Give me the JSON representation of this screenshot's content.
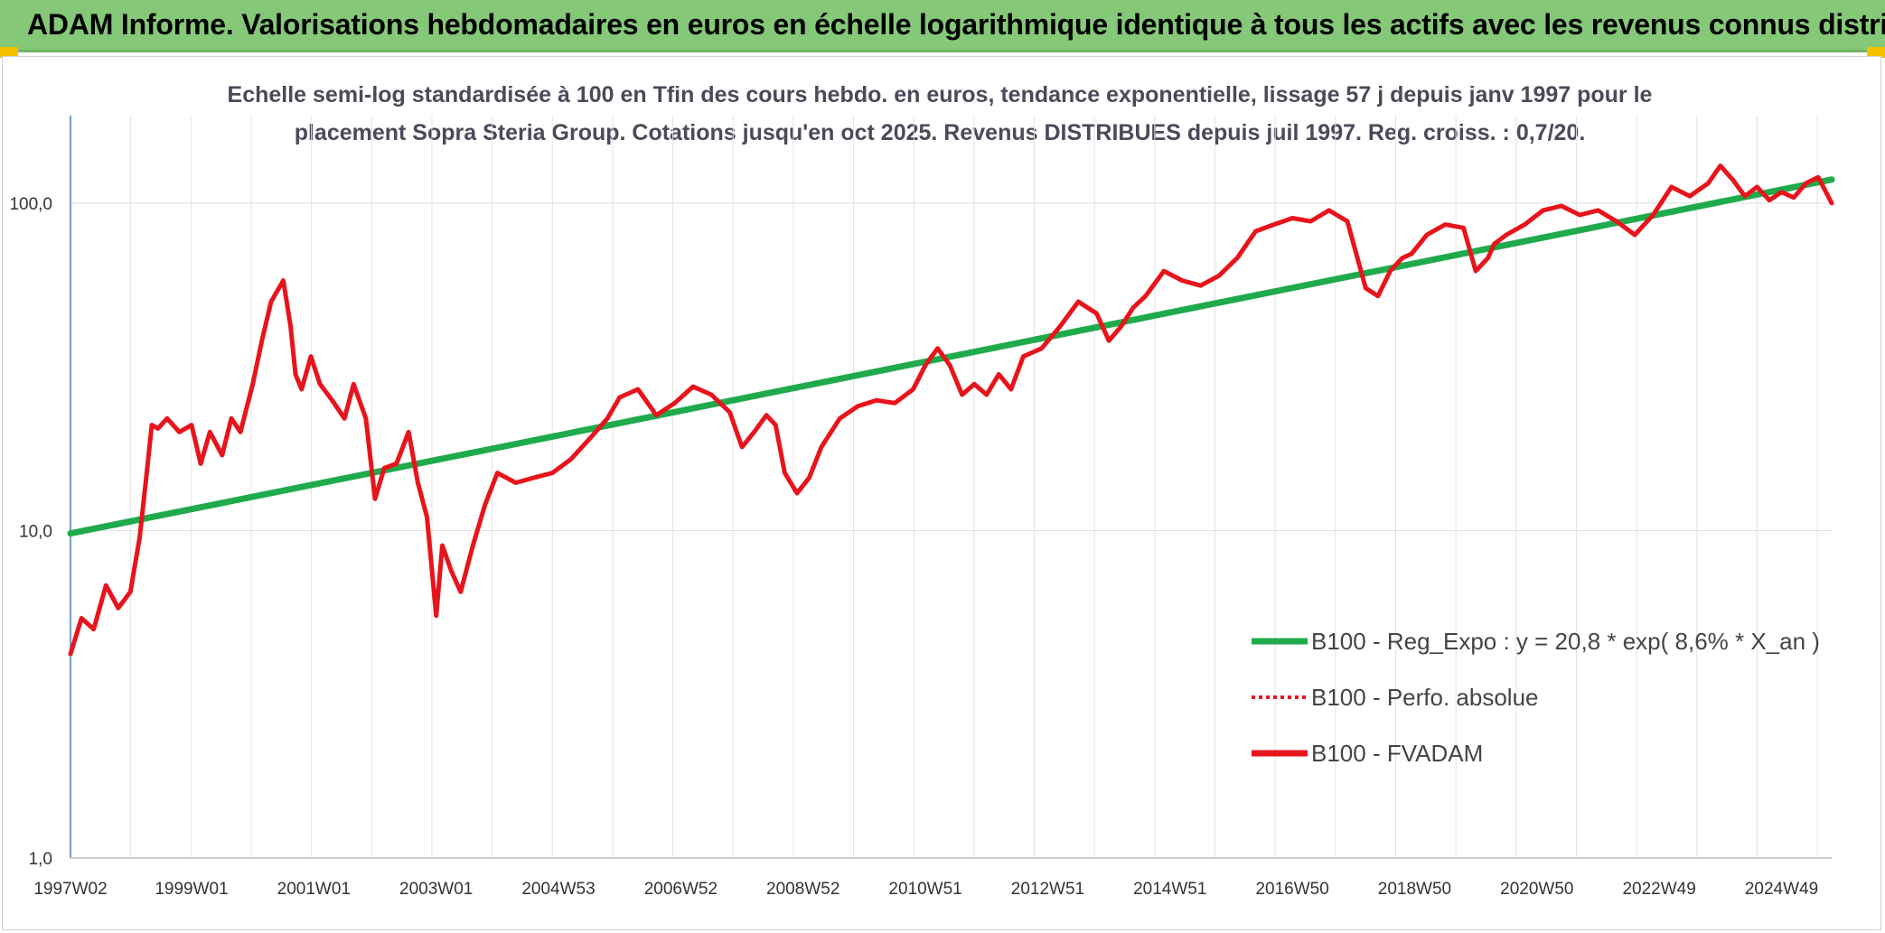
{
  "banner": {
    "title": "ADAM Informe. Valorisations hebdomadaires en euros en échelle logarithmique identique à tous les actifs avec les revenus connus distribués",
    "color": "#85c878"
  },
  "chart_data": {
    "type": "line",
    "title": "Echelle semi-log standardisée à 100 en Tfin des cours hebdo. en euros, tendance exponentielle, lissage 57 j depuis janv 1997 pour le placement Sopra Steria Group. Cotations jusqu'en oct 2025. Revenus DISTRIBUES depuis juil 1997. Reg. croiss. : 0,7/20.",
    "title_line1": "Echelle semi-log standardisée à 100 en Tfin des cours hebdo. en euros, tendance exponentielle, lissage 57 j depuis janv 1997 pour le",
    "title_line2": "placement Sopra Steria Group. Cotations jusqu'en oct 2025. Revenus DISTRIBUES depuis juil 1997. Reg. croiss. : 0,7/20.",
    "yscale": "log",
    "ylim": [
      1,
      185
    ],
    "xlim": [
      1997.02,
      2025.82
    ],
    "grid": true,
    "legend_position": "bottom-right",
    "y_ticks": [
      {
        "value": 1,
        "label": "1,0"
      },
      {
        "value": 10,
        "label": "10,0"
      },
      {
        "value": 100,
        "label": "100,0"
      }
    ],
    "x_ticks": [
      {
        "value": 1997.02,
        "label": "1997W02"
      },
      {
        "value": 1999.0,
        "label": "1999W01"
      },
      {
        "value": 2001.0,
        "label": "2001W01"
      },
      {
        "value": 2003.0,
        "label": "2003W01"
      },
      {
        "value": 2005.0,
        "label": "2004W53"
      },
      {
        "value": 2007.0,
        "label": "2006W52"
      },
      {
        "value": 2009.0,
        "label": "2008W52"
      },
      {
        "value": 2011.0,
        "label": "2010W51"
      },
      {
        "value": 2013.0,
        "label": "2012W51"
      },
      {
        "value": 2015.0,
        "label": "2014W51"
      },
      {
        "value": 2017.0,
        "label": "2016W50"
      },
      {
        "value": 2019.0,
        "label": "2018W50"
      },
      {
        "value": 2021.0,
        "label": "2020W50"
      },
      {
        "value": 2023.0,
        "label": "2022W49"
      },
      {
        "value": 2025.0,
        "label": "2024W49"
      }
    ],
    "series": [
      {
        "name": "B100 - Reg_Expo : y = 20,8 * exp( 8,6% *  X_an )",
        "color": "#1faa4c",
        "style": "solid",
        "x": [
          1997.02,
          2025.82
        ],
        "y": [
          9.8,
          118
        ]
      },
      {
        "name": "B100 - Perfo. absolue",
        "color": "#e8141c",
        "style": "dotted",
        "x": [],
        "y": []
      },
      {
        "name": "B100 - FVADAM",
        "color": "#e8141c",
        "style": "solid",
        "x": [
          1997.02,
          1997.2,
          1997.4,
          1997.6,
          1997.8,
          1998.0,
          1998.15,
          1998.25,
          1998.35,
          1998.45,
          1998.6,
          1998.8,
          1999.0,
          1999.15,
          1999.3,
          1999.5,
          1999.65,
          1999.8,
          2000.0,
          2000.15,
          2000.3,
          2000.5,
          2000.62,
          2000.7,
          2000.8,
          2000.95,
          2001.1,
          2001.3,
          2001.5,
          2001.65,
          2001.85,
          2002.0,
          2002.15,
          2002.35,
          2002.55,
          2002.7,
          2002.85,
          2003.0,
          2003.1,
          2003.25,
          2003.4,
          2003.6,
          2003.8,
          2004.0,
          2004.3,
          2004.6,
          2004.9,
          2005.2,
          2005.5,
          2005.8,
          2006.0,
          2006.3,
          2006.6,
          2006.9,
          2007.2,
          2007.5,
          2007.8,
          2008.0,
          2008.2,
          2008.4,
          2008.55,
          2008.7,
          2008.9,
          2009.1,
          2009.3,
          2009.6,
          2009.9,
          2010.2,
          2010.5,
          2010.8,
          2011.0,
          2011.2,
          2011.4,
          2011.6,
          2011.8,
          2012.0,
          2012.2,
          2012.4,
          2012.6,
          2012.9,
          2013.2,
          2013.5,
          2013.8,
          2014.0,
          2014.2,
          2014.4,
          2014.6,
          2014.9,
          2015.2,
          2015.5,
          2015.8,
          2016.1,
          2016.4,
          2016.7,
          2017.0,
          2017.3,
          2017.6,
          2017.9,
          2018.2,
          2018.4,
          2018.6,
          2018.8,
          2018.95,
          2019.2,
          2019.5,
          2019.8,
          2020.0,
          2020.2,
          2020.3,
          2020.5,
          2020.8,
          2021.1,
          2021.4,
          2021.7,
          2022.0,
          2022.3,
          2022.6,
          2022.9,
          2023.2,
          2023.5,
          2023.8,
          2024.0,
          2024.2,
          2024.4,
          2024.6,
          2024.8,
          2025.0,
          2025.2,
          2025.4,
          2025.6,
          2025.82
        ],
        "y": [
          4.2,
          5.4,
          5.0,
          6.8,
          5.8,
          6.5,
          9.5,
          14.0,
          21.0,
          20.5,
          22.0,
          20.0,
          21.0,
          16.0,
          20.0,
          17.0,
          22.0,
          20.0,
          28.0,
          38.0,
          50.0,
          58.0,
          42.0,
          30.0,
          27.0,
          34.0,
          28.0,
          25.0,
          22.0,
          28.0,
          22.0,
          12.5,
          15.5,
          16.0,
          20.0,
          14.0,
          11.0,
          5.5,
          9.0,
          7.5,
          6.5,
          9.0,
          12.0,
          15.0,
          14.0,
          14.5,
          15.0,
          16.5,
          19.0,
          22.0,
          25.5,
          27.0,
          22.5,
          24.5,
          27.5,
          26.0,
          23.0,
          18.0,
          20.0,
          22.5,
          21.0,
          15.0,
          13.0,
          14.5,
          18.0,
          22.0,
          24.0,
          25.0,
          24.5,
          27.0,
          32.0,
          36.0,
          32.0,
          26.0,
          28.0,
          26.0,
          30.0,
          27.0,
          34.0,
          36.0,
          42.0,
          50.0,
          46.0,
          38.0,
          42.0,
          48.0,
          52.0,
          62.0,
          58.0,
          56.0,
          60.0,
          68.0,
          82.0,
          86.0,
          90.0,
          88.0,
          95.0,
          88.0,
          55.0,
          52.0,
          62.0,
          68.0,
          70.0,
          80.0,
          86.0,
          84.0,
          62.0,
          68.0,
          75.0,
          80.0,
          86.0,
          95.0,
          98.0,
          92.0,
          95.0,
          88.0,
          80.0,
          92.0,
          112.0,
          105.0,
          115.0,
          130.0,
          118.0,
          105.0,
          112.0,
          102.0,
          108.0,
          104.0,
          115.0,
          120.0,
          100.0
        ]
      }
    ]
  }
}
